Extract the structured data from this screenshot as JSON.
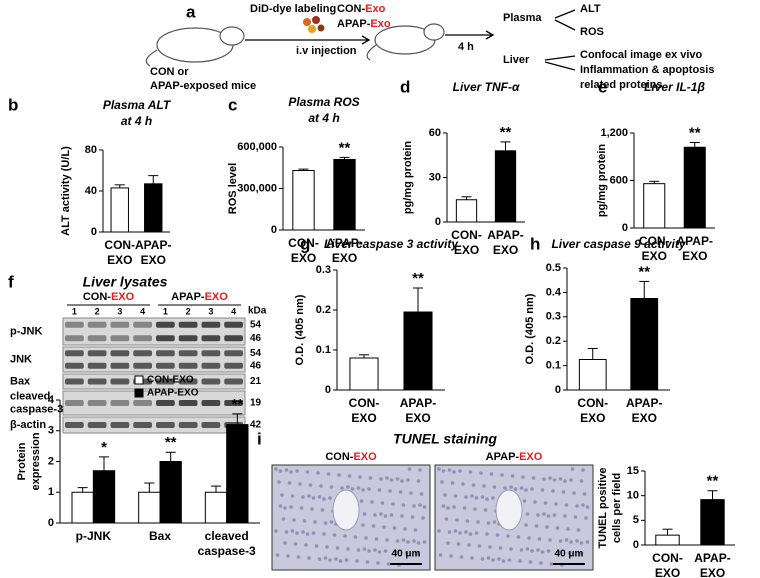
{
  "panels": [
    "a",
    "b",
    "c",
    "d",
    "e",
    "f",
    "g",
    "h",
    "i"
  ],
  "schematic": {
    "labeling": "DiD-dye labeling",
    "con_exo": [
      "CON-",
      "Exo"
    ],
    "apap_exo": [
      "APAP-",
      "Exo"
    ],
    "injection": "i.v injection",
    "mice": [
      "CON or",
      "APAP-exposed mice"
    ],
    "time": "4 h",
    "plasma": "Plasma",
    "liver": "Liver",
    "plasma_readouts": [
      "ALT",
      "ROS"
    ],
    "liver_readouts": [
      "Confocal image ex vivo",
      "Inflammation & apoptosis",
      "related proteins"
    ]
  },
  "blot": {
    "title": "Liver lysates",
    "groups": [
      {
        "label": [
          "CON-",
          "EXO"
        ],
        "lanes": [
          "1",
          "2",
          "3",
          "4"
        ]
      },
      {
        "label": [
          "APAP-",
          "EXO"
        ],
        "lanes": [
          "1",
          "2",
          "3",
          "4"
        ]
      }
    ],
    "unit": "kDa",
    "rows": [
      {
        "label": [
          "p-JNK"
        ],
        "sizes": [
          "54",
          "46"
        ]
      },
      {
        "label": [
          "JNK"
        ],
        "sizes": [
          "54",
          "46"
        ]
      },
      {
        "label": [
          "Bax"
        ],
        "sizes": [
          "21"
        ]
      },
      {
        "label": [
          "cleaved",
          "caspase-3"
        ],
        "sizes": [
          "19"
        ]
      },
      {
        "label": [
          "β-actin"
        ],
        "sizes": [
          "42"
        ]
      }
    ]
  },
  "tunel": {
    "title": "TUNEL staining",
    "images": [
      [
        "CON-",
        "EXO"
      ],
      [
        "APAP-",
        "EXO"
      ]
    ],
    "scale": "40 μm"
  },
  "chart_data": [
    {
      "type": "bar",
      "title": "Plasma  ALT",
      "subtitle": "at 4 h",
      "y_label": [
        "ALT activity  (U/L)"
      ],
      "categories": [
        [
          "CON-",
          "EXO"
        ],
        [
          "APAP-",
          "EXO"
        ]
      ],
      "category_line_colors": [
        "#000000",
        "#e8191c"
      ],
      "values": [
        43,
        47
      ],
      "errors": [
        3,
        8
      ],
      "colors": [
        "#ffffff",
        "#000000"
      ],
      "annotations": [
        null,
        null
      ],
      "ylim": [
        0,
        80
      ],
      "yticks": [
        0,
        40,
        80
      ]
    },
    {
      "type": "bar",
      "title": "Plasma  ROS",
      "subtitle": "at 4 h",
      "y_label": [
        "ROS level"
      ],
      "categories": [
        [
          "CON-",
          "EXO"
        ],
        [
          "APAP-",
          "EXO"
        ]
      ],
      "category_line_colors": [
        "#000000",
        "#e8191c"
      ],
      "values": [
        430000,
        510000
      ],
      "errors": [
        10000,
        15000
      ],
      "colors": [
        "#ffffff",
        "#000000"
      ],
      "annotations": [
        null,
        "**"
      ],
      "ylim": [
        0,
        600000
      ],
      "yticks": [
        0,
        {
          "value": 300000,
          "label": "300,000"
        },
        {
          "value": 600000,
          "label": "600,000"
        }
      ]
    },
    {
      "type": "bar",
      "title": "Liver TNF-α",
      "y_label": [
        "pg/mg protein"
      ],
      "categories": [
        [
          "CON-",
          "EXO"
        ],
        [
          "APAP-",
          "EXO"
        ]
      ],
      "category_line_colors": [
        "#000000",
        "#e8191c"
      ],
      "values": [
        15,
        48
      ],
      "errors": [
        2,
        6
      ],
      "colors": [
        "#ffffff",
        "#000000"
      ],
      "annotations": [
        null,
        "**"
      ],
      "ylim": [
        0,
        60
      ],
      "yticks": [
        0,
        30,
        60
      ]
    },
    {
      "type": "bar",
      "title": "Liver IL-1β",
      "y_label": [
        "pg/mg protein"
      ],
      "categories": [
        [
          "CON-",
          "EXO"
        ],
        [
          "APAP-",
          "EXO"
        ]
      ],
      "category_line_colors": [
        "#000000",
        "#e8191c"
      ],
      "values": [
        560,
        1020
      ],
      "errors": [
        30,
        60
      ],
      "colors": [
        "#ffffff",
        "#000000"
      ],
      "annotations": [
        null,
        "**"
      ],
      "ylim": [
        0,
        1200
      ],
      "yticks": [
        0,
        600,
        {
          "value": 1200,
          "label": "1,200"
        }
      ]
    },
    {
      "type": "grouped_bar",
      "y_label": [
        "Protein",
        "expression"
      ],
      "categories": [
        [
          "p-JNK"
        ],
        [
          "Bax"
        ],
        [
          "cleaved",
          "caspase-3"
        ]
      ],
      "category_line_colors": [
        "#000000",
        "#000000"
      ],
      "series": [
        {
          "name": "CON-EXO",
          "color": "#ffffff",
          "values": [
            1,
            1,
            1
          ],
          "errors": [
            0.15,
            0.3,
            0.2
          ],
          "annotations": [
            null,
            null,
            null
          ]
        },
        {
          "name": "APAP-EXO",
          "color": "#000000",
          "values": [
            1.7,
            2.0,
            3.2
          ],
          "errors": [
            0.45,
            0.3,
            0.35
          ],
          "annotations": [
            "*",
            "**",
            "**"
          ]
        }
      ],
      "ylim": [
        0,
        4
      ],
      "yticks": [
        0,
        1,
        2,
        3,
        4
      ],
      "legend": "top"
    },
    {
      "type": "bar",
      "title": "Liver caspase  3 activity",
      "y_label": [
        "O.D. (405 nm)"
      ],
      "categories": [
        [
          "CON-",
          "EXO"
        ],
        [
          "APAP-",
          "EXO"
        ]
      ],
      "category_line_colors": [
        "#000000",
        "#e8191c"
      ],
      "values": [
        0.08,
        0.195
      ],
      "errors": [
        0.008,
        0.06
      ],
      "colors": [
        "#ffffff",
        "#000000"
      ],
      "annotations": [
        null,
        "**"
      ],
      "ylim": [
        0,
        0.3
      ],
      "yticks": [
        0,
        0.1,
        0.2,
        0.3
      ]
    },
    {
      "type": "bar",
      "title": "Liver caspase  9 activity",
      "y_label": [
        "O.D. (405 nm)"
      ],
      "categories": [
        [
          "CON-",
          "EXO"
        ],
        [
          "APAP-",
          "EXO"
        ]
      ],
      "category_line_colors": [
        "#000000",
        "#e8191c"
      ],
      "values": [
        0.125,
        0.375
      ],
      "errors": [
        0.045,
        0.07
      ],
      "colors": [
        "#ffffff",
        "#000000"
      ],
      "annotations": [
        null,
        "**"
      ],
      "ylim": [
        0,
        0.5
      ],
      "yticks": [
        0,
        0.1,
        0.2,
        0.3,
        0.4,
        0.5
      ]
    },
    {
      "type": "bar",
      "y_label": [
        "TUNEL positive",
        "cells per field"
      ],
      "categories": [
        [
          "CON-",
          "EXO"
        ],
        [
          "APAP-",
          "EXO"
        ]
      ],
      "category_line_colors": [
        "#000000",
        "#e8191c"
      ],
      "values": [
        2,
        9.2
      ],
      "errors": [
        1.2,
        1.8
      ],
      "colors": [
        "#ffffff",
        "#000000"
      ],
      "annotations": [
        null,
        "**"
      ],
      "ylim": [
        0,
        15
      ],
      "yticks": [
        0,
        5,
        10,
        15
      ]
    }
  ]
}
